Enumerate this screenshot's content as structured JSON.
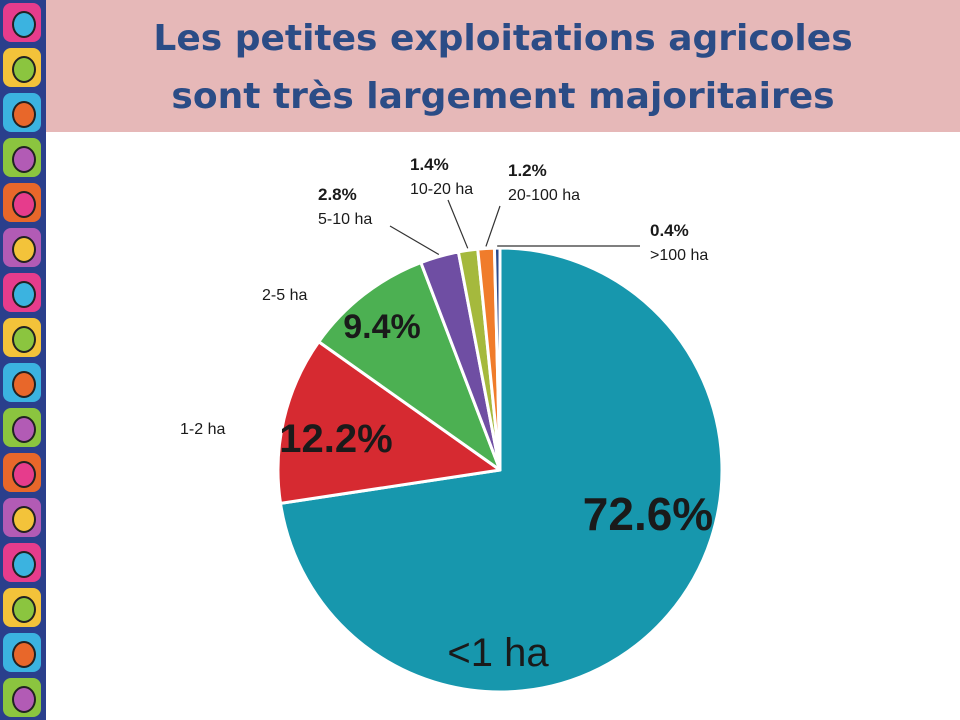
{
  "slide": {
    "title_line1": "Les petites exploitations agricoles",
    "title_line2": "sont très largement majoritaires"
  },
  "decor_strip": {
    "description_icons": [
      "people-illustration-icon"
    ],
    "count": 16
  },
  "chart_data": {
    "type": "pie",
    "slices": [
      {
        "category": "<1 ha",
        "value": 72.6,
        "value_label": "72.6%",
        "color": "#1797ad"
      },
      {
        "category": "1-2 ha",
        "value": 12.2,
        "value_label": "12.2%",
        "color": "#d62a31"
      },
      {
        "category": "2-5 ha",
        "value": 9.4,
        "value_label": "9.4%",
        "color": "#4cb052"
      },
      {
        "category": "5-10 ha",
        "value": 2.8,
        "value_label": "2.8%",
        "color": "#6f4ea3"
      },
      {
        "category": "10-20 ha",
        "value": 1.4,
        "value_label": "1.4%",
        "color": "#a5b93d"
      },
      {
        "category": "20-100 ha",
        "value": 1.2,
        "value_label": "1.2%",
        "color": "#f07c2b"
      },
      {
        "category": ">100 ha",
        "value": 0.4,
        "value_label": "0.4%",
        "color": "#2b4a8c"
      }
    ],
    "legend": "none"
  }
}
